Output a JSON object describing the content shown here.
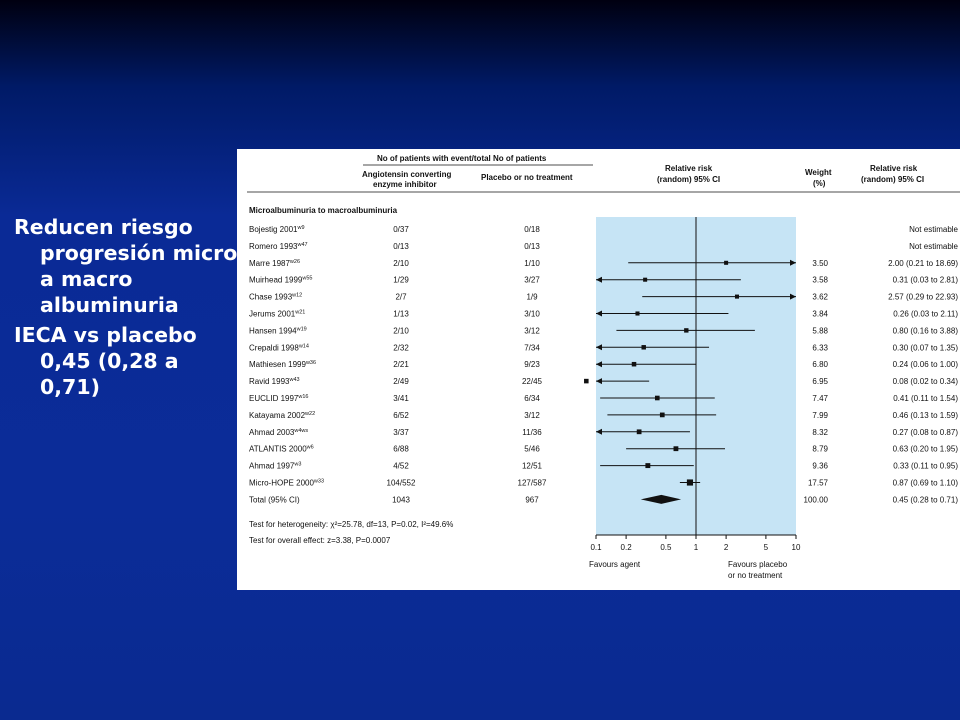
{
  "bullets": [
    {
      "text": "Reducen riesgo progresión micro a macro albuminuria"
    },
    {
      "text": "IECA vs placebo 0,45 (0,28 a 0,71)"
    }
  ],
  "figure": {
    "header_group": "No of patients with event/total No of patients",
    "col_ace": "Angiotensin converting enzyme inhibitor",
    "col_placebo": "Placebo or no treatment",
    "col_rr": "Relative risk (random) 95% CI",
    "col_weight": "Weight (%)",
    "col_rr_text": "Relative risk (random) 95% CI",
    "subgroup": "Microalbuminuria to macroalbuminuria",
    "heterogeneity": "Test for heterogeneity: χ²=25.78, df=13, P=0.02, I²=49.6%",
    "overall_effect": "Test for overall effect: z=3.38, P=0.0007",
    "favours_left": "Favours agent",
    "favours_right": "Favours placebo or no treatment"
  },
  "chart_data": {
    "type": "forest",
    "x_scale": "log",
    "xlim": [
      0.1,
      10
    ],
    "x_ticks": [
      "0.1",
      "0.2",
      "0.5",
      "1",
      "2",
      "5",
      "10"
    ],
    "x_tick_values": [
      0.1,
      0.2,
      0.5,
      1,
      2,
      5,
      10
    ],
    "accent_color": "#c6e4f5",
    "studies": [
      {
        "name": "Bojestig 2001",
        "ref": "w9",
        "ace": "0/37",
        "placebo": "0/18",
        "weight": "",
        "ci_text": "Not estimable",
        "rr": null,
        "lo": null,
        "hi": null
      },
      {
        "name": "Romero 1993",
        "ref": "w47",
        "ace": "0/13",
        "placebo": "0/13",
        "weight": "",
        "ci_text": "Not estimable",
        "rr": null,
        "lo": null,
        "hi": null
      },
      {
        "name": "Marre 1987",
        "ref": "w26",
        "ace": "2/10",
        "placebo": "1/10",
        "weight": "3.50",
        "ci_text": "2.00 (0.21 to 18.69)",
        "rr": 2.0,
        "lo": 0.21,
        "hi": 18.69
      },
      {
        "name": "Muirhead 1999",
        "ref": "w55",
        "ace": "1/29",
        "placebo": "3/27",
        "weight": "3.58",
        "ci_text": "0.31 (0.03 to 2.81)",
        "rr": 0.31,
        "lo": 0.03,
        "hi": 2.81
      },
      {
        "name": "Chase 1993",
        "ref": "w12",
        "ace": "2/7",
        "placebo": "1/9",
        "weight": "3.62",
        "ci_text": "2.57 (0.29 to 22.93)",
        "rr": 2.57,
        "lo": 0.29,
        "hi": 22.93
      },
      {
        "name": "Jerums 2001",
        "ref": "w21",
        "ace": "1/13",
        "placebo": "3/10",
        "weight": "3.84",
        "ci_text": "0.26 (0.03 to 2.11)",
        "rr": 0.26,
        "lo": 0.03,
        "hi": 2.11
      },
      {
        "name": "Hansen 1994",
        "ref": "w19",
        "ace": "2/10",
        "placebo": "3/12",
        "weight": "5.88",
        "ci_text": "0.80 (0.16 to 3.88)",
        "rr": 0.8,
        "lo": 0.16,
        "hi": 3.88
      },
      {
        "name": "Crepaldi 1998",
        "ref": "w14",
        "ace": "2/32",
        "placebo": "7/34",
        "weight": "6.33",
        "ci_text": "0.30 (0.07 to 1.35)",
        "rr": 0.3,
        "lo": 0.07,
        "hi": 1.35
      },
      {
        "name": "Mathiesen 1999",
        "ref": "w36",
        "ace": "2/21",
        "placebo": "9/23",
        "weight": "6.80",
        "ci_text": "0.24 (0.06 to 1.00)",
        "rr": 0.24,
        "lo": 0.06,
        "hi": 1.0
      },
      {
        "name": "Ravid 1993",
        "ref": "w43",
        "ace": "2/49",
        "placebo": "22/45",
        "weight": "6.95",
        "ci_text": "0.08 (0.02 to 0.34)",
        "rr": 0.08,
        "lo": 0.02,
        "hi": 0.34
      },
      {
        "name": "EUCLID 1997",
        "ref": "w16",
        "ace": "3/41",
        "placebo": "6/34",
        "weight": "7.47",
        "ci_text": "0.41 (0.11 to 1.54)",
        "rr": 0.41,
        "lo": 0.11,
        "hi": 1.54
      },
      {
        "name": "Katayama 2002",
        "ref": "w22",
        "ace": "6/52",
        "placebo": "3/12",
        "weight": "7.99",
        "ci_text": "0.46 (0.13 to 1.59)",
        "rr": 0.46,
        "lo": 0.13,
        "hi": 1.59
      },
      {
        "name": "Ahmad 2003",
        "ref": "w4ws",
        "ace": "3/37",
        "placebo": "11/36",
        "weight": "8.32",
        "ci_text": "0.27 (0.08 to 0.87)",
        "rr": 0.27,
        "lo": 0.08,
        "hi": 0.87
      },
      {
        "name": "ATLANTIS 2000",
        "ref": "w6",
        "ace": "6/88",
        "placebo": "5/46",
        "weight": "8.79",
        "ci_text": "0.63 (0.20 to 1.95)",
        "rr": 0.63,
        "lo": 0.2,
        "hi": 1.95
      },
      {
        "name": "Ahmad 1997",
        "ref": "w3",
        "ace": "4/52",
        "placebo": "12/51",
        "weight": "9.36",
        "ci_text": "0.33 (0.11 to 0.95)",
        "rr": 0.33,
        "lo": 0.11,
        "hi": 0.95
      },
      {
        "name": "Micro-HOPE 2000",
        "ref": "w33",
        "ace": "104/552",
        "placebo": "127/587",
        "weight": "17.57",
        "ci_text": "0.87 (0.69 to 1.10)",
        "rr": 0.87,
        "lo": 0.69,
        "hi": 1.1
      }
    ],
    "total": {
      "name": "Total (95% CI)",
      "ace": "1043",
      "placebo": "967",
      "weight": "100.00",
      "ci_text": "0.45 (0.28 to 0.71)",
      "rr": 0.45,
      "lo": 0.28,
      "hi": 0.71
    }
  }
}
